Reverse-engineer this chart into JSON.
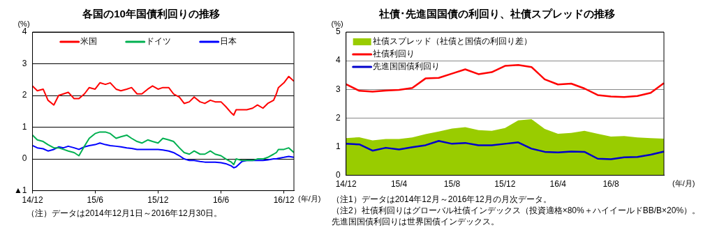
{
  "chart_data": [
    {
      "type": "line",
      "title": "各国の10年国債利回りの推移",
      "ylabel": "(%)",
      "xlabel": "(年/月)",
      "x": [
        "2014-12-01",
        "2014-12-15",
        "2015-01-01",
        "2015-01-15",
        "2015-02-01",
        "2015-02-15",
        "2015-03-01",
        "2015-03-15",
        "2015-04-01",
        "2015-04-15",
        "2015-05-01",
        "2015-05-15",
        "2015-06-01",
        "2015-06-15",
        "2015-07-01",
        "2015-07-15",
        "2015-08-01",
        "2015-08-15",
        "2015-09-01",
        "2015-09-15",
        "2015-10-01",
        "2015-10-15",
        "2015-11-01",
        "2015-11-15",
        "2015-12-01",
        "2015-12-15",
        "2016-01-01",
        "2016-01-15",
        "2016-02-01",
        "2016-02-15",
        "2016-03-01",
        "2016-03-15",
        "2016-04-01",
        "2016-04-15",
        "2016-05-01",
        "2016-05-15",
        "2016-06-01",
        "2016-06-15",
        "2016-07-01",
        "2016-07-08",
        "2016-07-15",
        "2016-08-01",
        "2016-08-15",
        "2016-09-01",
        "2016-09-15",
        "2016-10-01",
        "2016-10-15",
        "2016-11-01",
        "2016-11-09",
        "2016-11-15",
        "2016-12-01",
        "2016-12-15",
        "2016-12-30"
      ],
      "series": [
        {
          "name": "米国",
          "color": "#ff0000",
          "values": [
            2.3,
            2.15,
            2.2,
            1.85,
            1.7,
            2.0,
            2.05,
            2.1,
            1.9,
            1.9,
            2.05,
            2.25,
            2.2,
            2.4,
            2.35,
            2.4,
            2.2,
            2.15,
            2.2,
            2.25,
            2.05,
            2.05,
            2.2,
            2.3,
            2.2,
            2.25,
            2.25,
            2.05,
            1.95,
            1.75,
            1.8,
            1.95,
            1.8,
            1.75,
            1.85,
            1.8,
            1.8,
            1.65,
            1.45,
            1.38,
            1.55,
            1.55,
            1.55,
            1.6,
            1.7,
            1.6,
            1.75,
            1.85,
            2.05,
            2.25,
            2.4,
            2.6,
            2.45
          ]
        },
        {
          "name": "ドイツ",
          "color": "#00b050",
          "values": [
            0.75,
            0.6,
            0.55,
            0.45,
            0.35,
            0.35,
            0.3,
            0.25,
            0.2,
            0.1,
            0.4,
            0.65,
            0.8,
            0.85,
            0.85,
            0.8,
            0.65,
            0.7,
            0.75,
            0.65,
            0.55,
            0.5,
            0.6,
            0.55,
            0.5,
            0.65,
            0.6,
            0.55,
            0.35,
            0.2,
            0.15,
            0.25,
            0.15,
            0.15,
            0.25,
            0.15,
            0.1,
            0.0,
            -0.1,
            -0.18,
            0.0,
            -0.05,
            -0.05,
            -0.05,
            0.0,
            0.0,
            0.05,
            0.15,
            0.2,
            0.3,
            0.3,
            0.35,
            0.2
          ]
        },
        {
          "name": "日本",
          "color": "#0000ff",
          "values": [
            0.42,
            0.35,
            0.32,
            0.25,
            0.3,
            0.38,
            0.35,
            0.4,
            0.35,
            0.3,
            0.38,
            0.42,
            0.45,
            0.5,
            0.45,
            0.42,
            0.4,
            0.38,
            0.35,
            0.33,
            0.3,
            0.3,
            0.3,
            0.3,
            0.3,
            0.28,
            0.25,
            0.2,
            0.1,
            0.0,
            -0.05,
            -0.05,
            -0.08,
            -0.1,
            -0.1,
            -0.1,
            -0.12,
            -0.15,
            -0.22,
            -0.28,
            -0.25,
            -0.08,
            -0.05,
            -0.05,
            -0.05,
            -0.05,
            -0.03,
            0.0,
            0.0,
            0.02,
            0.05,
            0.08,
            0.05
          ]
        }
      ],
      "xlim": [
        "2014-12-01",
        "2016-12-30"
      ],
      "xticks": [
        {
          "value": "2014-12-01",
          "label": "14/12"
        },
        {
          "value": "2015-06-01",
          "label": "15/6"
        },
        {
          "value": "2015-12-01",
          "label": "15/12"
        },
        {
          "value": "2016-06-01",
          "label": "16/6"
        },
        {
          "value": "2016-12-01",
          "label": "16/12"
        }
      ],
      "ylim": [
        -1,
        4
      ],
      "yticks": [
        {
          "value": -1,
          "label": "▲1"
        },
        0,
        1,
        2,
        3,
        4
      ],
      "grid": "y",
      "legend": "top",
      "annotations": [
        "（注）データは2014年12月1日～2016年12月30日。"
      ]
    },
    {
      "type": "line",
      "title": "社債･先進国国債の利回り、社債スプレッドの推移",
      "ylabel": "(%)",
      "xlabel": "(年/月)",
      "categories": [
        "14/12",
        null,
        null,
        null,
        "15/4",
        null,
        null,
        null,
        "15/8",
        null,
        null,
        null,
        "15/12",
        null,
        null,
        null,
        "16/4",
        null,
        null,
        null,
        "16/8",
        null,
        null,
        null,
        null
      ],
      "series": [
        {
          "name": "社債スプレッド（社債と国債の利回り差）",
          "type": "area",
          "color": "#99cc00",
          "values": [
            1.3,
            1.33,
            1.22,
            1.27,
            1.27,
            1.32,
            1.44,
            1.53,
            1.63,
            1.68,
            1.58,
            1.55,
            1.65,
            1.92,
            1.96,
            1.62,
            1.45,
            1.48,
            1.55,
            1.45,
            1.35,
            1.37,
            1.32,
            1.3,
            1.28
          ]
        },
        {
          "name": "社債利回り",
          "type": "line",
          "color": "#ff0000",
          "values": [
            3.18,
            2.95,
            2.92,
            2.96,
            2.98,
            3.05,
            3.38,
            3.4,
            3.55,
            3.7,
            3.53,
            3.6,
            3.82,
            3.85,
            3.78,
            3.35,
            3.17,
            3.2,
            3.03,
            2.8,
            2.75,
            2.73,
            2.77,
            2.88,
            3.22
          ]
        },
        {
          "name": "先進国国債利回り",
          "type": "line",
          "color": "#0000cc",
          "values": [
            1.1,
            1.08,
            0.86,
            0.96,
            0.9,
            0.98,
            1.05,
            1.2,
            1.1,
            1.13,
            1.05,
            1.05,
            1.1,
            1.15,
            0.93,
            0.82,
            0.8,
            0.83,
            0.82,
            0.58,
            0.56,
            0.63,
            0.64,
            0.72,
            0.83
          ]
        }
      ],
      "ylim": [
        0,
        5
      ],
      "yticks": [
        0,
        1,
        2,
        3,
        4,
        5
      ],
      "grid": "y",
      "legend": "top left",
      "annotations": [
        "（注1）データは2014年12月～2016年12月の月次データ。",
        "（注2）社債利回りはグローバル社債インデックス（投資適格×80%＋ハイイールドBB/B×20%）。先進国国債利回りは世界国債インデックス。"
      ]
    }
  ]
}
